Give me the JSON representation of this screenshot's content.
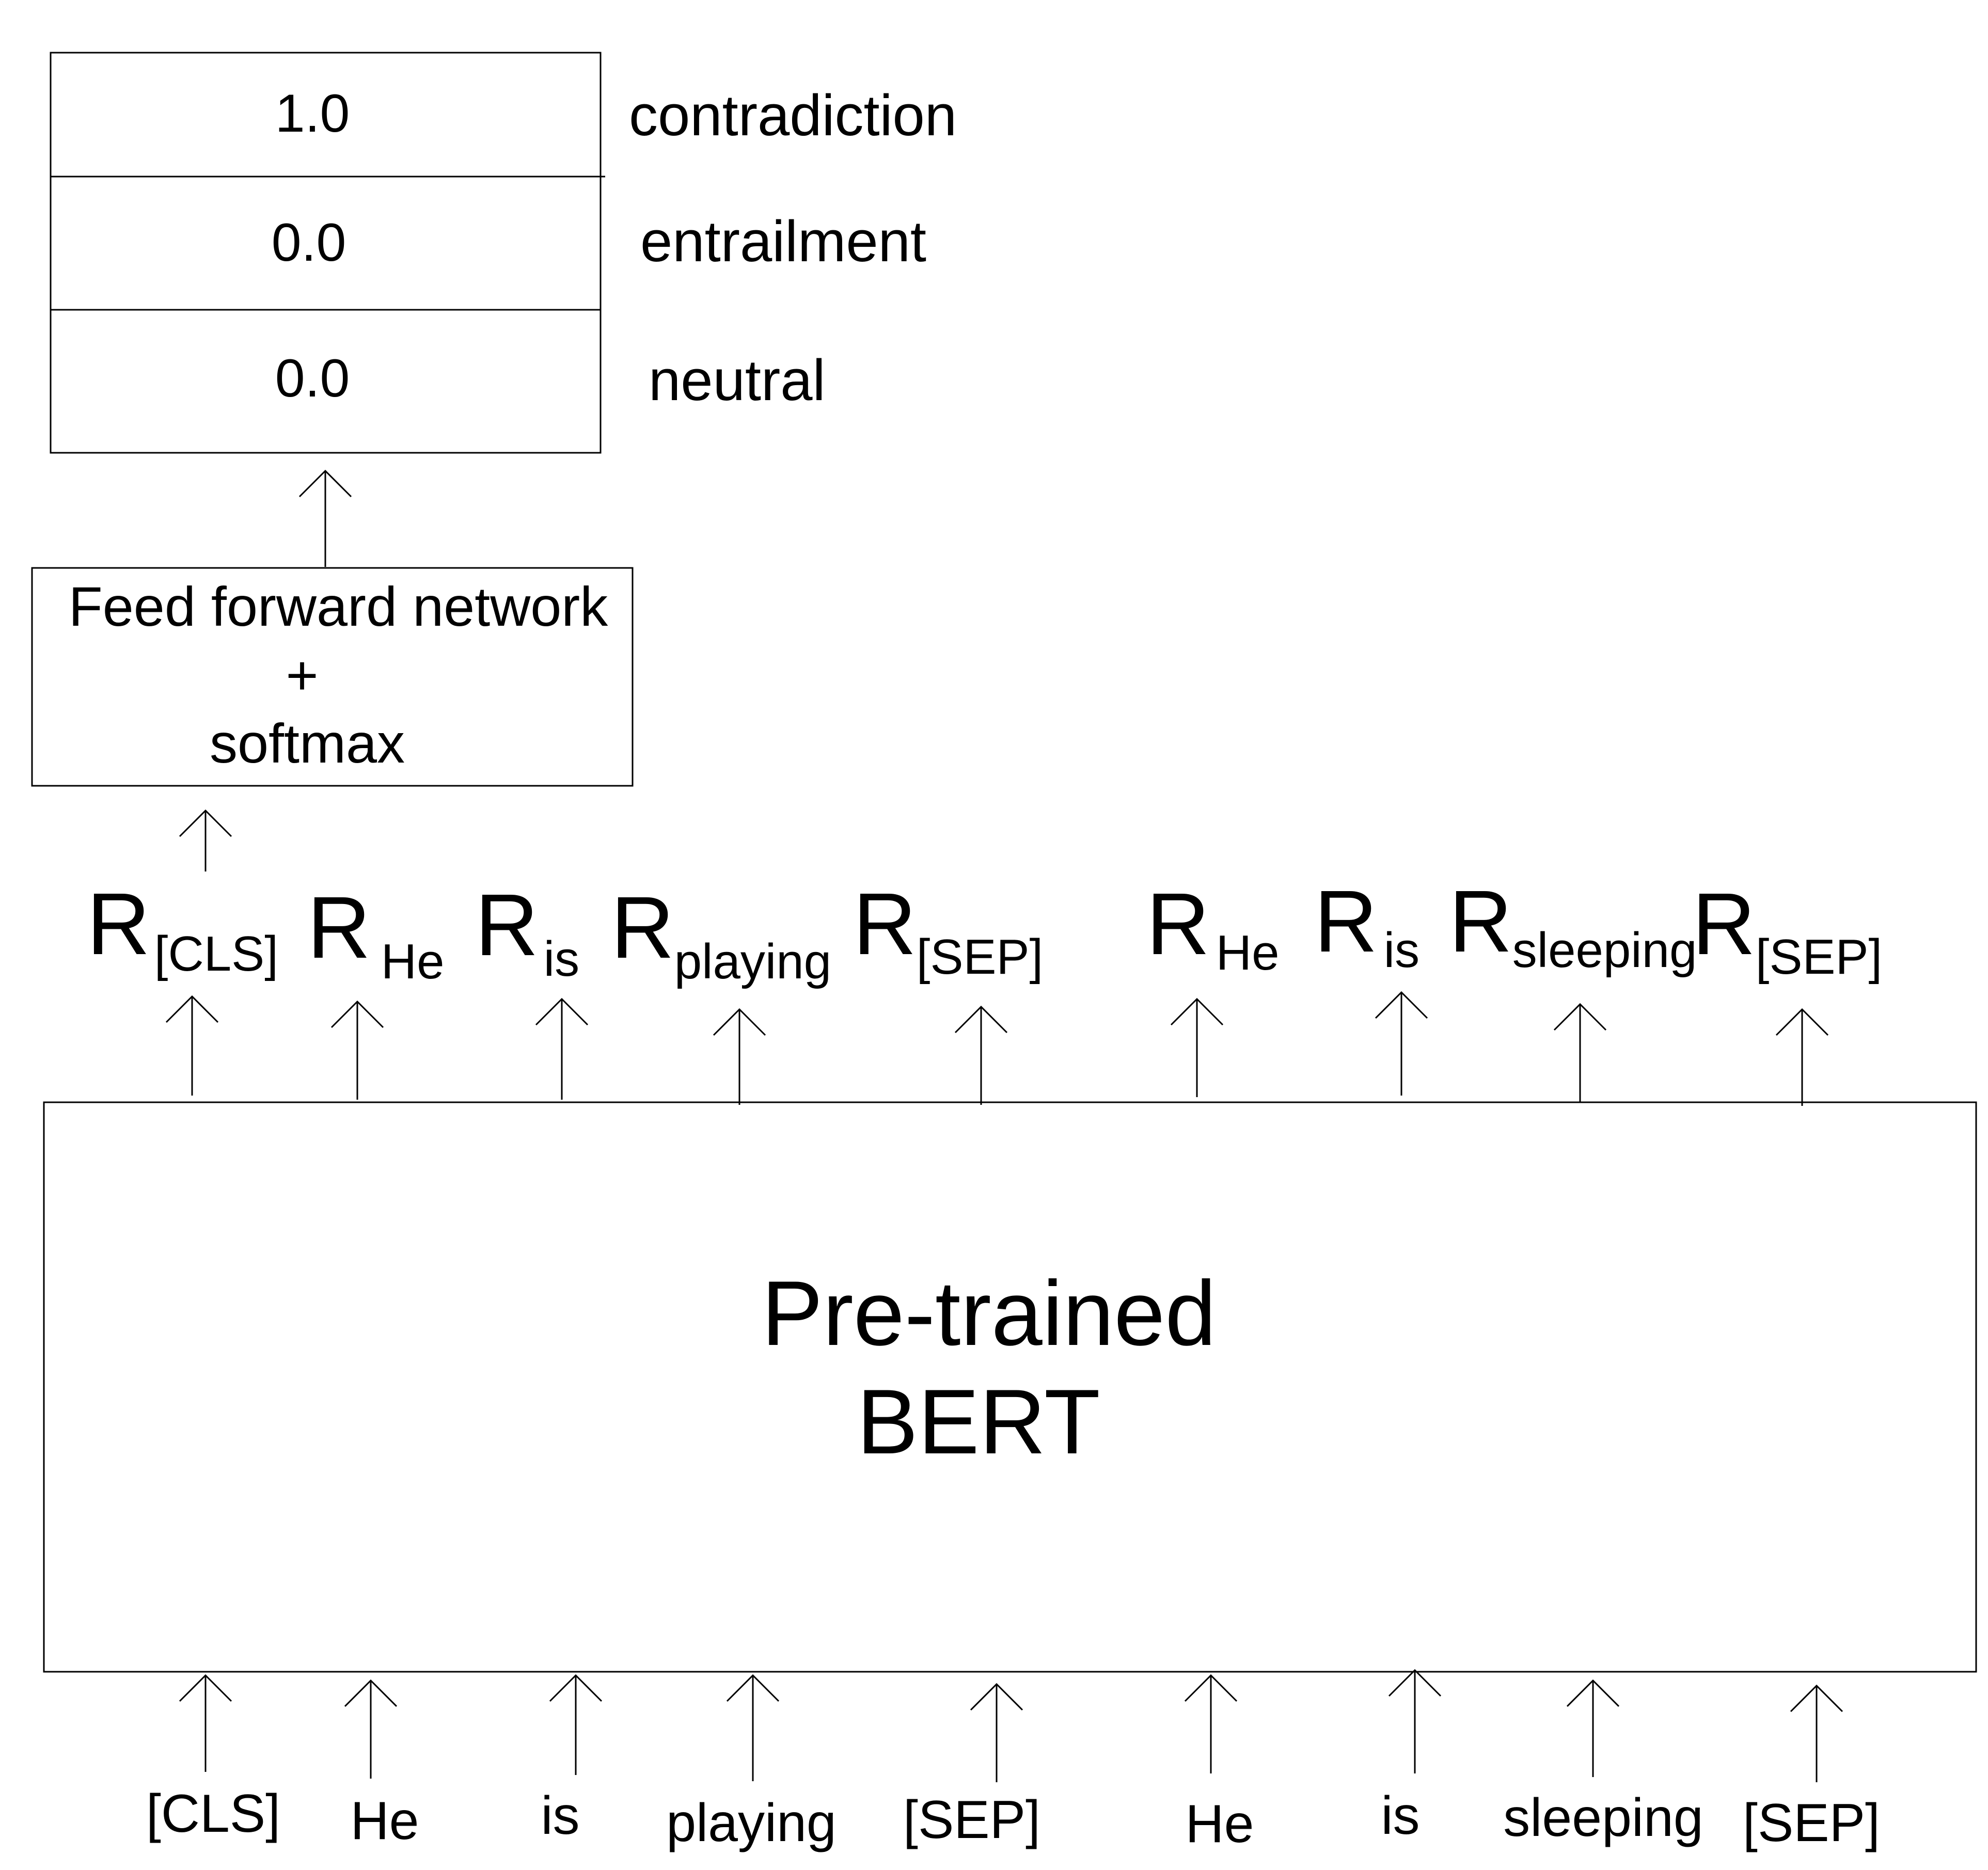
{
  "output_box": {
    "rows": [
      {
        "value": "1.0",
        "label": "contradiction"
      },
      {
        "value": "0.0",
        "label": "entrailment"
      },
      {
        "value": "0.0",
        "label": "neutral"
      }
    ]
  },
  "ffn_box": {
    "line1": "Feed forward network",
    "line2": "+",
    "line3": "softmax"
  },
  "bert_box": {
    "line1": "Pre-trained",
    "line2": "BERT"
  },
  "representations": [
    {
      "base": "R",
      "sub": "[CLS]"
    },
    {
      "base": "R",
      "sub": "He"
    },
    {
      "base": "R",
      "sub": "is"
    },
    {
      "base": "R",
      "sub": "playing"
    },
    {
      "base": "R",
      "sub": "[SEP]"
    },
    {
      "base": "R",
      "sub": "He"
    },
    {
      "base": "R",
      "sub": "is"
    },
    {
      "base": "R",
      "sub": "sleeping"
    },
    {
      "base": "R",
      "sub": "[SEP]"
    }
  ],
  "input_tokens": [
    "[CLS]",
    "He",
    "is",
    "playing",
    "[SEP]",
    "He",
    "is",
    "sleeping",
    "[SEP]"
  ]
}
